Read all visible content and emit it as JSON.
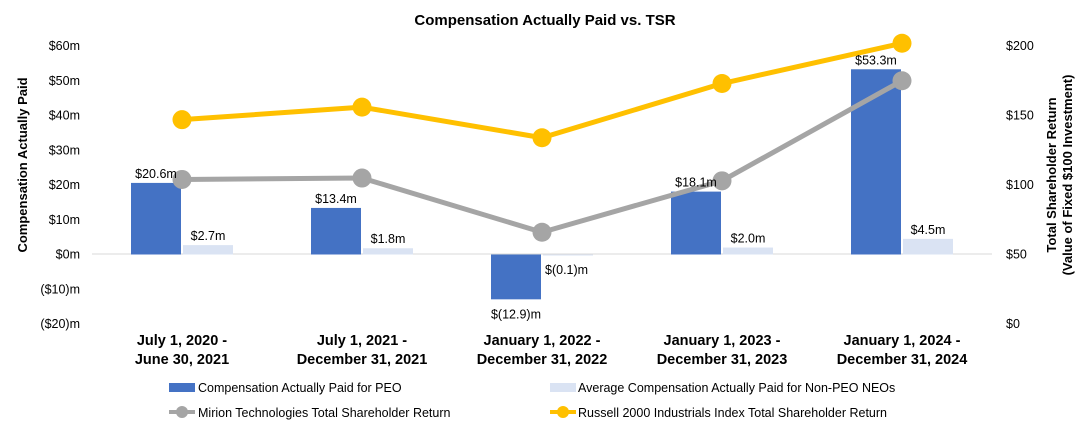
{
  "chart_data": {
    "type": "bar",
    "title": "Compensation Actually Paid vs. TSR",
    "ylabel": "Compensation Actually Paid",
    "y2label_line1": "Total Shareholder Return",
    "y2label_line2": "(Value of Fixed $100 Investment)",
    "ylim": [
      -20,
      60
    ],
    "y2lim": [
      0,
      200
    ],
    "y_ticks": [
      {
        "value": 60,
        "label": "$60m"
      },
      {
        "value": 50,
        "label": "$50m"
      },
      {
        "value": 40,
        "label": "$40m"
      },
      {
        "value": 30,
        "label": "$30m"
      },
      {
        "value": 20,
        "label": "$20m"
      },
      {
        "value": 10,
        "label": "$10m"
      },
      {
        "value": 0,
        "label": "$0m"
      },
      {
        "value": -10,
        "label": "($10)m"
      },
      {
        "value": -20,
        "label": "($20)m"
      }
    ],
    "y2_ticks": [
      {
        "value": 200,
        "label": "$200"
      },
      {
        "value": 150,
        "label": "$150"
      },
      {
        "value": 100,
        "label": "$100"
      },
      {
        "value": 50,
        "label": "$50"
      },
      {
        "value": 0,
        "label": "$0"
      }
    ],
    "categories": [
      [
        "July 1, 2020 -",
        "June 30, 2021"
      ],
      [
        "July 1, 2021 -",
        "December 31, 2021"
      ],
      [
        "January 1, 2022 -",
        "December 31, 2022"
      ],
      [
        "January 1, 2023 -",
        "December 31, 2023"
      ],
      [
        "January 1, 2024 -",
        "December 31, 2024"
      ]
    ],
    "bar_series": [
      {
        "name": "Compensation Actually Paid for PEO",
        "color": "#4472C4",
        "values": [
          20.6,
          13.4,
          -12.9,
          18.1,
          53.3
        ],
        "labels": [
          "$20.6m",
          "$13.4m",
          "$(12.9)m",
          "$18.1m",
          "$53.3m"
        ]
      },
      {
        "name": "Average Compensation Actually Paid for Non-PEO NEOs",
        "color": "#DAE3F3",
        "values": [
          2.7,
          1.8,
          -0.1,
          2.0,
          4.5
        ],
        "labels": [
          "$2.7m",
          "$1.8m",
          "$(0.1)m",
          "$2.0m",
          "$4.5m"
        ]
      }
    ],
    "line_series": [
      {
        "name": "Mirion Technologies Total Shareholder Return",
        "color": "#A5A5A5",
        "values": [
          104,
          105,
          66,
          103,
          175
        ]
      },
      {
        "name": "Russell 2000 Industrials Index Total Shareholder Return",
        "color": "#FFC000",
        "values": [
          147,
          156,
          134,
          173,
          202
        ]
      }
    ]
  }
}
